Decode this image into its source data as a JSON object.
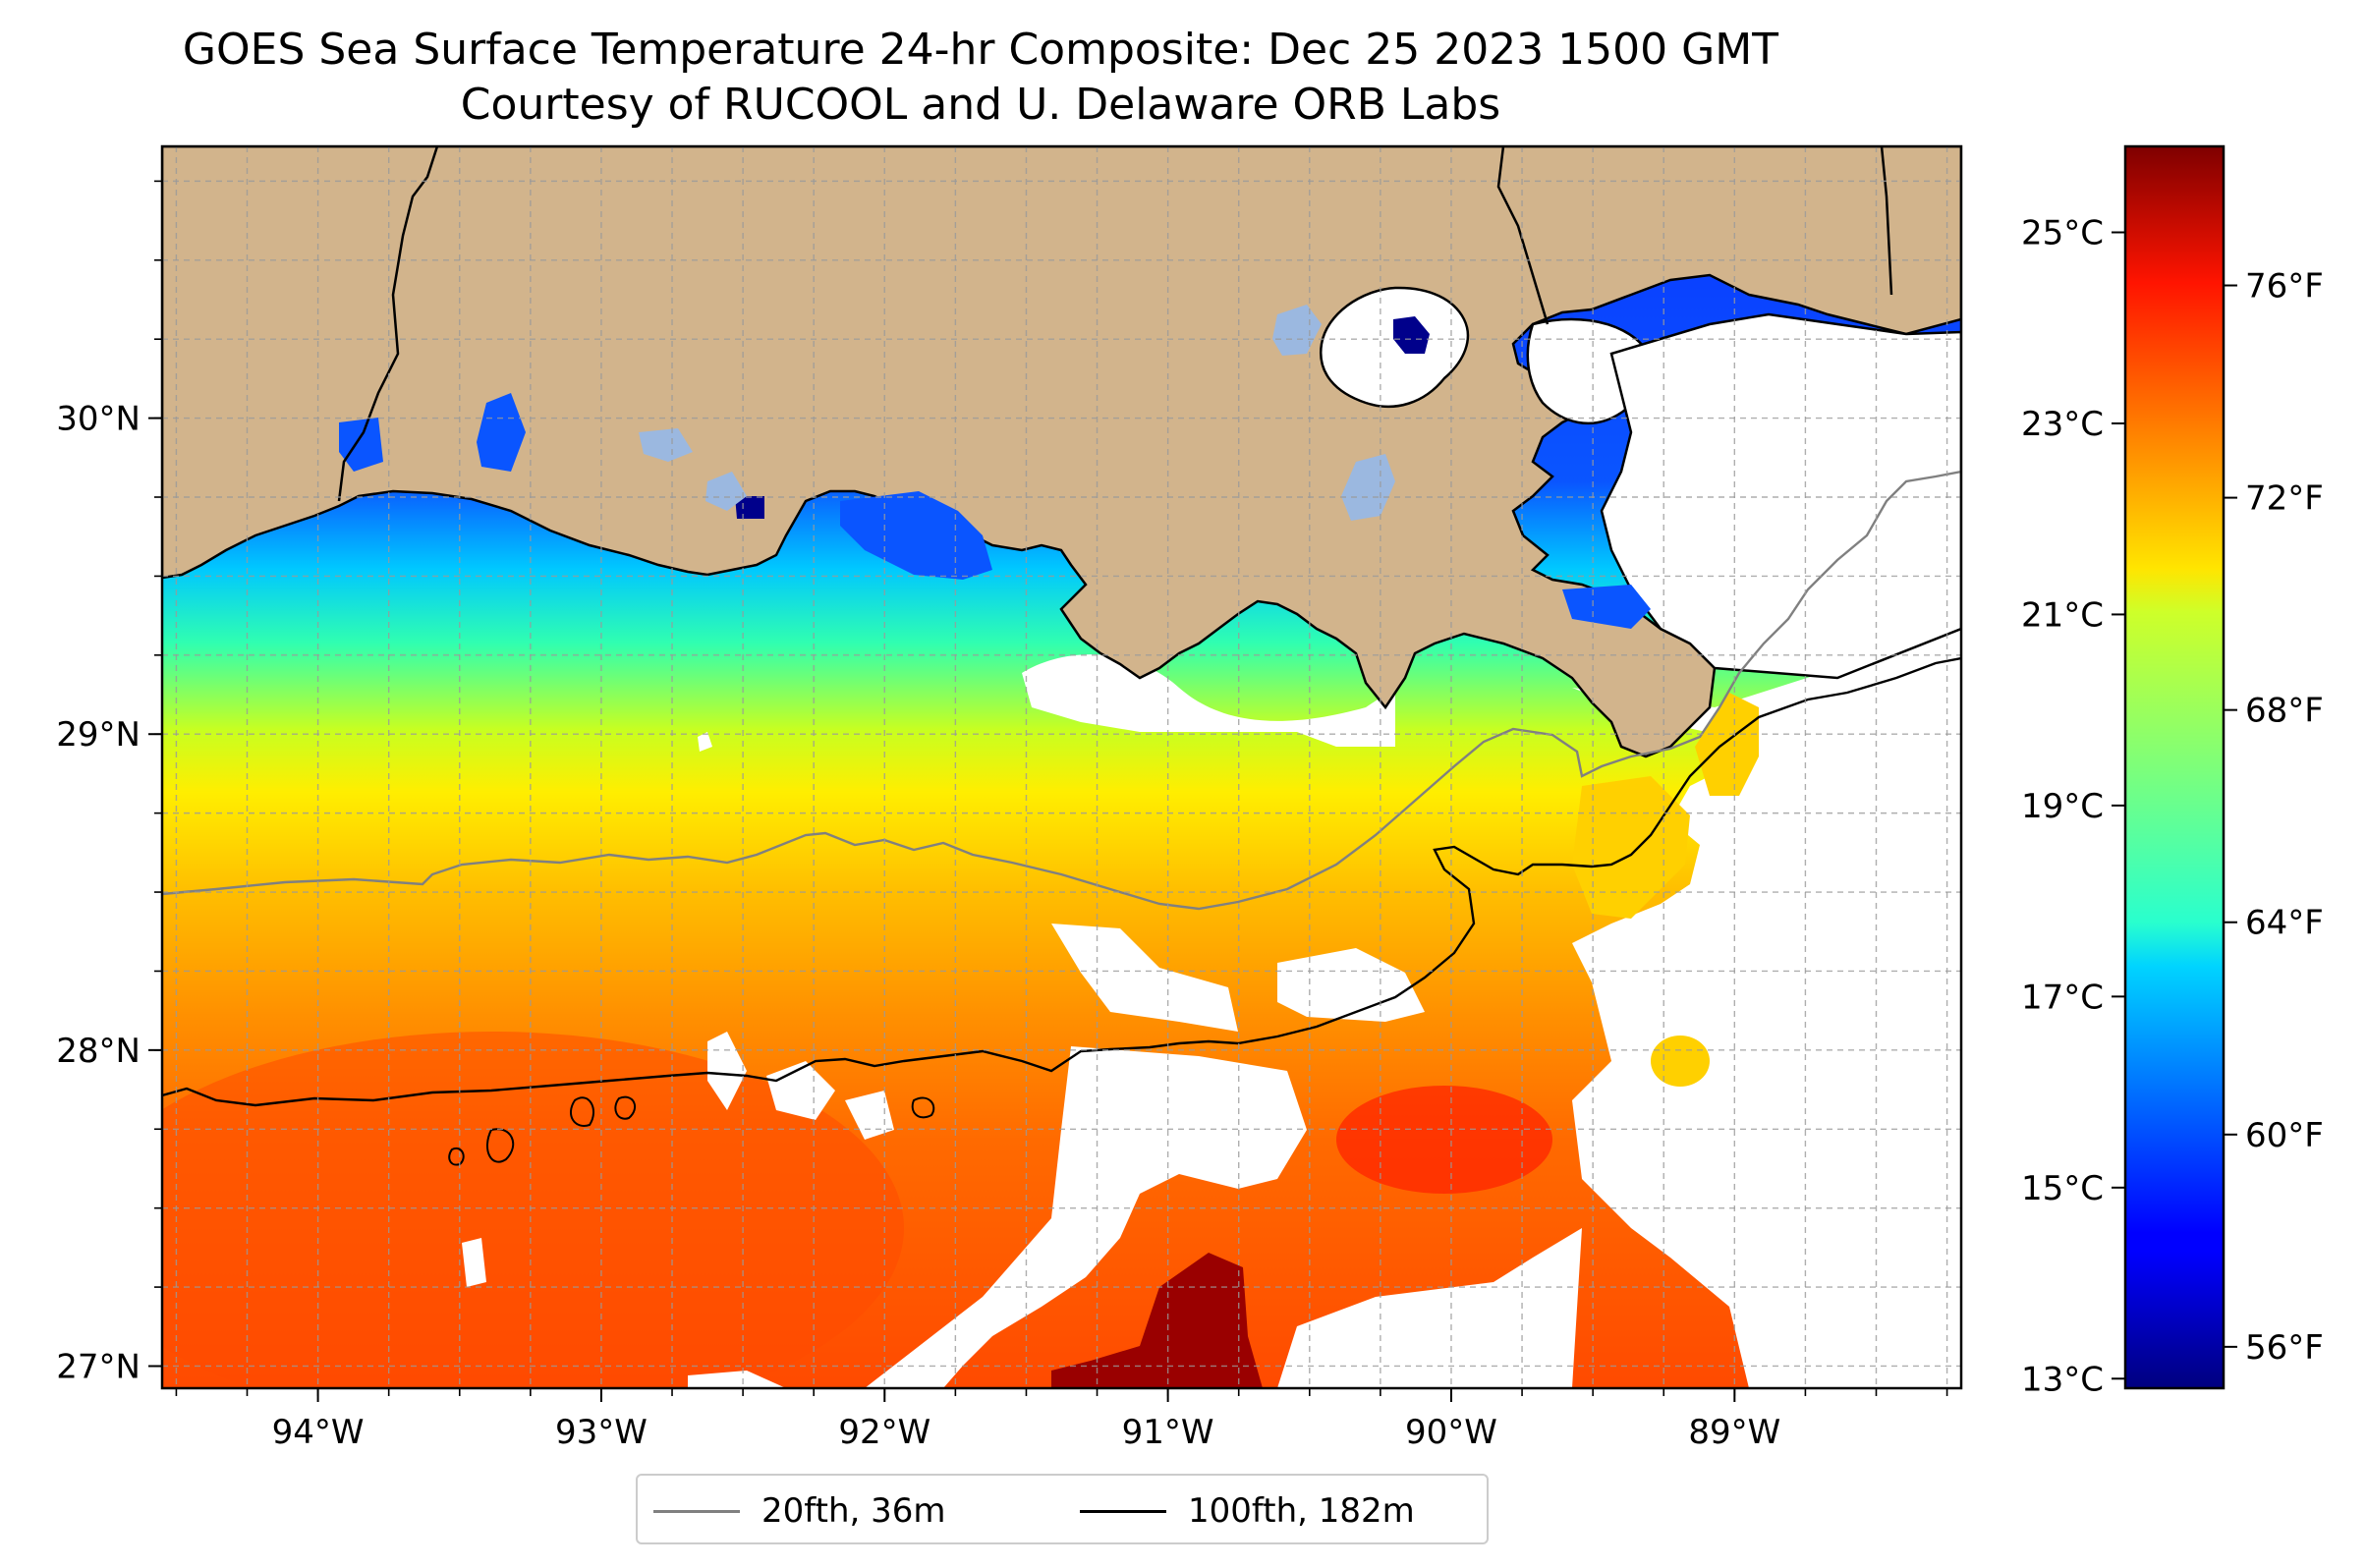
{
  "title": {
    "line1": "GOES Sea Surface Temperature 24-hr Composite: Dec 25 2023 1500 GMT",
    "line2": "Courtesy of RUCOOL and U. Delaware ORB Labs"
  },
  "map": {
    "lon_range": [
      -94.55,
      -88.2
    ],
    "lat_range": [
      26.93,
      30.86
    ],
    "lon_ticks": [
      {
        "value": -94,
        "label": "94°W"
      },
      {
        "value": -93,
        "label": "93°W"
      },
      {
        "value": -92,
        "label": "92°W"
      },
      {
        "value": -91,
        "label": "91°W"
      },
      {
        "value": -90,
        "label": "90°W"
      },
      {
        "value": -89,
        "label": "89°W"
      }
    ],
    "lat_ticks": [
      {
        "value": 30,
        "label": "30°N"
      },
      {
        "value": 29,
        "label": "29°N"
      },
      {
        "value": 28,
        "label": "28°N"
      },
      {
        "value": 27,
        "label": "27°N"
      }
    ],
    "grid": "dashed",
    "land_color": "#d2b48c",
    "no_data_color": "#ffffff",
    "colors": {
      "cold": "#0a35ff",
      "cool": "#00c8ff",
      "mild": "#30ffb0",
      "warm_yellow": "#e8ff10",
      "orange": "#ff9a00",
      "hot": "#ff4400",
      "hottest": "#9a0000"
    }
  },
  "colorbar": {
    "colormap": "jet",
    "celsius_range": [
      12.9,
      25.9
    ],
    "celsius_ticks": [
      {
        "value": 13,
        "label": "13°C"
      },
      {
        "value": 15,
        "label": "15°C"
      },
      {
        "value": 17,
        "label": "17°C"
      },
      {
        "value": 19,
        "label": "19°C"
      },
      {
        "value": 21,
        "label": "21°C"
      },
      {
        "value": 23,
        "label": "23°C"
      },
      {
        "value": 25,
        "label": "25°C"
      }
    ],
    "fahrenheit_ticks": [
      {
        "value": 56,
        "label": "56°F"
      },
      {
        "value": 60,
        "label": "60°F"
      },
      {
        "value": 64,
        "label": "64°F"
      },
      {
        "value": 68,
        "label": "68°F"
      },
      {
        "value": 72,
        "label": "72°F"
      },
      {
        "value": 76,
        "label": "76°F"
      }
    ]
  },
  "legend": {
    "items": [
      {
        "label": "20fth, 36m",
        "color": "#808080"
      },
      {
        "label": "100fth, 182m",
        "color": "#000000"
      }
    ]
  }
}
